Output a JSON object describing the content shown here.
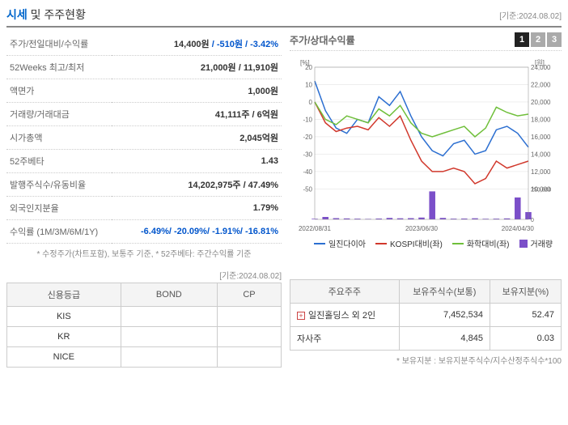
{
  "header": {
    "title_prefix": "시세",
    "title_rest": " 및 주주현황",
    "date_label": "[기준:2024.08.02]"
  },
  "info_rows": [
    {
      "label": "주가/전일대비/수익률",
      "value_main": "14,400원",
      "value_sub": " / -510원 / -3.42%",
      "neg": true
    },
    {
      "label": "52Weeks 최고/최저",
      "value_main": "21,000원 / 11,910원",
      "value_sub": ""
    },
    {
      "label": "액면가",
      "value_main": "1,000원",
      "value_sub": ""
    },
    {
      "label": "거래량/거래대금",
      "value_main": "41,111주 / 6억원",
      "value_sub": ""
    },
    {
      "label": "시가총액",
      "value_main": "2,045억원",
      "value_sub": ""
    },
    {
      "label": "52주베타",
      "value_main": "1.43",
      "value_sub": ""
    },
    {
      "label": "발행주식수/유동비율",
      "value_main": "14,202,975주 / 47.49%",
      "value_sub": ""
    },
    {
      "label": "외국인지분율",
      "value_main": "1.79%",
      "value_sub": ""
    },
    {
      "label": "수익률 (1M/3M/6M/1Y)",
      "value_main": "",
      "value_sub": "-6.49%/ -20.09%/ -1.91%/ -16.81%",
      "neg": true
    }
  ],
  "info_footnote": "* 수정주가(차트포함), 보통주 기준, * 52주베타: 주간수익률 기준",
  "chart": {
    "title": "주가/상대수익률",
    "tabs": [
      "1",
      "2",
      "3"
    ],
    "active_tab": 0,
    "left_axis_label": "[%]",
    "right_axis_label": "[원]",
    "left_ylim": [
      -50,
      20
    ],
    "left_ticks": [
      20,
      10,
      0,
      -10,
      -20,
      -30,
      -40,
      -50
    ],
    "right_ylim": [
      10000,
      24000
    ],
    "right_ticks": [
      24000,
      22000,
      20000,
      18000,
      16000,
      14000,
      12000,
      10000
    ],
    "vol_ticks": [
      250000,
      0
    ],
    "x_labels": [
      "2022/08/31",
      "2023/06/30",
      "2024/04/30"
    ],
    "series": [
      {
        "name": "일진다이아",
        "color": "#2c6fd1",
        "y": [
          12,
          -5,
          -15,
          -18,
          -10,
          -12,
          3,
          -2,
          6,
          -8,
          -20,
          -28,
          -31,
          -24,
          -22,
          -30,
          -28,
          -16,
          -14,
          -18,
          -26
        ]
      },
      {
        "name": "KOSPI대비(좌)",
        "color": "#d1382c",
        "y": [
          0,
          -12,
          -17,
          -15,
          -14,
          -16,
          -9,
          -14,
          -8,
          -22,
          -34,
          -40,
          -40,
          -38,
          -40,
          -47,
          -44,
          -34,
          -38,
          -36,
          -34
        ]
      },
      {
        "name": "화학대비(좌)",
        "color": "#6fbf3a",
        "y": [
          0,
          -10,
          -13,
          -8,
          -10,
          -12,
          -4,
          -8,
          -2,
          -12,
          -18,
          -20,
          -18,
          -16,
          -14,
          -20,
          -15,
          -3,
          -6,
          -8,
          -7
        ]
      }
    ],
    "volume": {
      "name": "거래량",
      "color": "#7b4fc9",
      "y": [
        5000,
        20000,
        10000,
        8000,
        6000,
        4000,
        7000,
        12000,
        9000,
        10000,
        15000,
        230000,
        12000,
        6000,
        7000,
        9000,
        5000,
        6000,
        8000,
        180000,
        60000
      ]
    },
    "background_color": "#ffffff",
    "grid_color": "#dddddd"
  },
  "credit": {
    "date_label": "[기준:2024.08.02]",
    "columns": [
      "신용등급",
      "BOND",
      "CP"
    ],
    "rows": [
      [
        "KIS",
        "",
        ""
      ],
      [
        "KR",
        "",
        ""
      ],
      [
        "NICE",
        "",
        ""
      ]
    ]
  },
  "shareholders": {
    "columns": [
      "주요주주",
      "보유주식수(보통)",
      "보유지분(%)"
    ],
    "rows": [
      {
        "expandable": true,
        "name": "일진홀딩스 외 2인",
        "shares": "7,452,534",
        "pct": "52.47"
      },
      {
        "expandable": false,
        "name": "자사주",
        "shares": "4,845",
        "pct": "0.03"
      }
    ],
    "footnote": "* 보유지분 : 보유지분주식수/지수산정주식수*100"
  }
}
